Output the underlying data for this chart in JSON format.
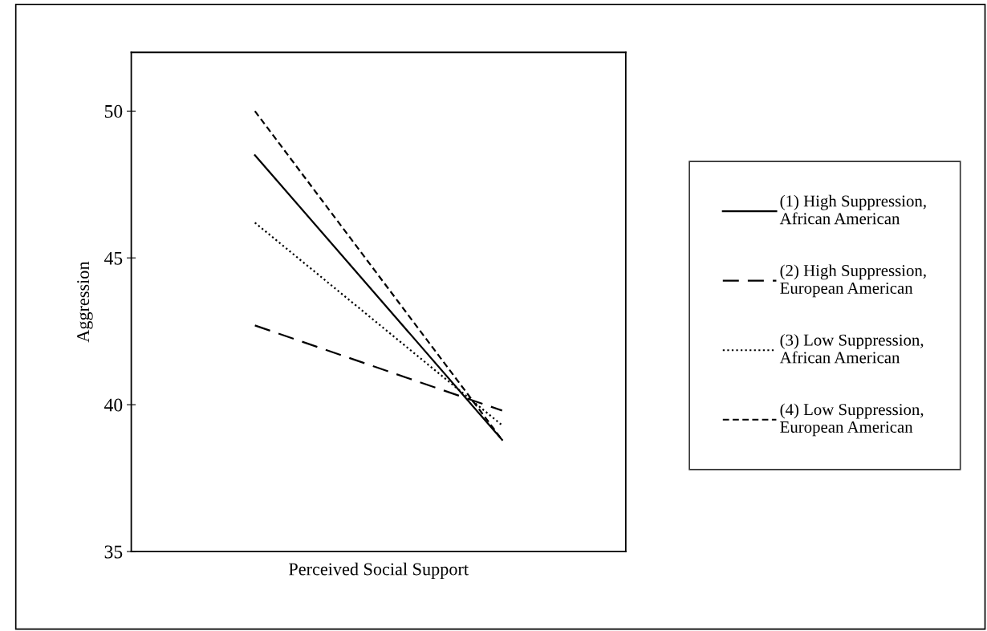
{
  "chart_data": {
    "type": "line",
    "xlabel": "Perceived Social Support",
    "ylabel": "Aggression",
    "categories": [
      null,
      null
    ],
    "series": [
      {
        "name": "(1) High Suppression,\nAfrican American",
        "color": "#000000",
        "line_style": "solid",
        "values": [
          48.5,
          38.8
        ]
      },
      {
        "name": "(2) High Suppression,\nEuropean American",
        "color": "#000000",
        "line_style": "long dashed",
        "values": [
          42.7,
          39.8
        ]
      },
      {
        "name": "(3) Low Suppression,\nAfrican American",
        "color": "#000000",
        "line_style": "dotted",
        "values": [
          46.2,
          39.3
        ]
      },
      {
        "name": "(4) Low Suppression,\nEuropean American",
        "color": "#000000",
        "line_style": "dashed",
        "values": [
          50.0,
          38.8
        ]
      }
    ],
    "ylim": [
      35,
      52
    ],
    "yticks": [
      35,
      40,
      45,
      50
    ],
    "tick_labels": "y",
    "grid": false,
    "legend": "right",
    "marker": "none"
  }
}
